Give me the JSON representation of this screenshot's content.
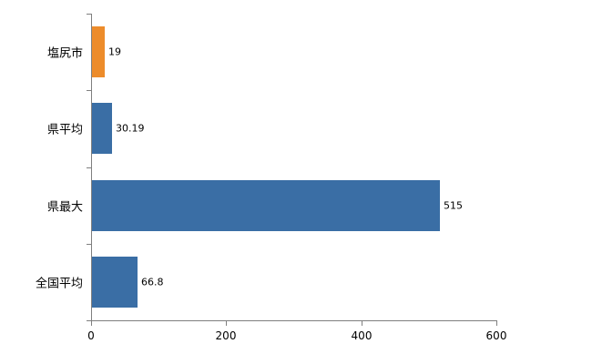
{
  "chart_data": {
    "type": "bar",
    "orientation": "horizontal",
    "title": "",
    "xlabel": "",
    "ylabel": "",
    "categories": [
      "塩尻市",
      "県平均",
      "県最大",
      "全国平均"
    ],
    "values": [
      19,
      30.19,
      515,
      66.8
    ],
    "value_labels": [
      "19",
      "30.19",
      "515",
      "66.8"
    ],
    "bar_colors": [
      "#ED8C2B",
      "#3A6EA5",
      "#3A6EA5",
      "#3A6EA5"
    ],
    "xlim": [
      0,
      600
    ],
    "x_ticks": [
      0,
      200,
      400,
      600
    ],
    "x_tick_labels": [
      "0",
      "200",
      "400",
      "600"
    ],
    "grid": false,
    "legend": "none",
    "axis_color": "#7f7f7f",
    "background_color": "#ffffff"
  }
}
